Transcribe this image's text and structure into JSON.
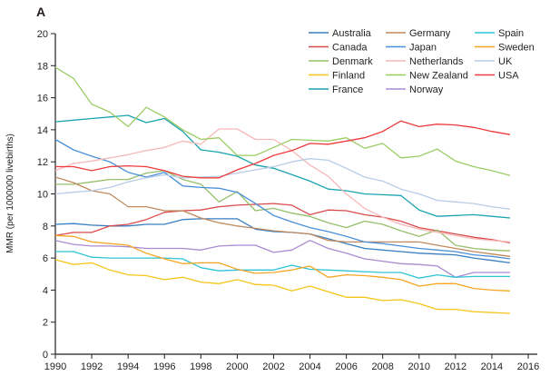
{
  "chart_data": {
    "type": "line",
    "panel_label": "A",
    "title": "",
    "xlabel": "",
    "ylabel": "MMR (per 1000000 livebirths)",
    "xlim": [
      1990,
      2016
    ],
    "ylim": [
      0,
      20
    ],
    "xticks": [
      1990,
      1992,
      1994,
      1996,
      1998,
      2000,
      2002,
      2004,
      2006,
      2008,
      2010,
      2012,
      2014,
      2016
    ],
    "yticks": [
      0,
      2,
      4,
      6,
      8,
      10,
      12,
      14,
      16,
      18,
      20
    ],
    "grid": false,
    "legend_position": "top-right",
    "x": [
      1990,
      1991,
      1992,
      1993,
      1994,
      1995,
      1996,
      1997,
      1998,
      1999,
      2000,
      2001,
      2002,
      2003,
      2004,
      2005,
      2006,
      2007,
      2008,
      2009,
      2010,
      2011,
      2012,
      2013,
      2014,
      2015
    ],
    "series": [
      {
        "name": "Australia",
        "color": "#3a7fc1",
        "values": [
          8.1,
          8.15,
          8.05,
          8.0,
          8.0,
          8.1,
          8.1,
          8.4,
          8.45,
          8.45,
          8.45,
          7.8,
          7.65,
          7.6,
          7.5,
          7.2,
          6.9,
          6.6,
          6.5,
          6.4,
          6.3,
          6.25,
          6.2,
          6.0,
          5.85,
          5.7
        ]
      },
      {
        "name": "Canada",
        "color": "#d94b4b",
        "values": [
          7.4,
          7.6,
          7.6,
          8.0,
          8.1,
          8.4,
          8.85,
          8.95,
          9.0,
          9.2,
          9.3,
          9.35,
          9.4,
          9.3,
          8.7,
          9.0,
          8.95,
          8.7,
          8.55,
          8.3,
          7.9,
          7.7,
          7.5,
          7.3,
          7.15,
          6.95
        ]
      },
      {
        "name": "Denmark",
        "color": "#95bf6a",
        "values": [
          10.6,
          10.6,
          10.75,
          10.9,
          10.9,
          11.3,
          11.45,
          10.9,
          10.6,
          9.5,
          10.15,
          8.95,
          9.1,
          8.8,
          8.6,
          8.2,
          7.9,
          8.3,
          8.1,
          7.7,
          7.35,
          7.75,
          6.8,
          6.6,
          6.5,
          6.45
        ]
      },
      {
        "name": "Finland",
        "color": "#f5c518",
        "values": [
          5.9,
          5.6,
          5.7,
          5.25,
          4.95,
          4.9,
          4.65,
          4.8,
          4.5,
          4.4,
          4.65,
          4.35,
          4.3,
          3.95,
          4.25,
          3.9,
          3.55,
          3.55,
          3.35,
          3.4,
          3.15,
          2.8,
          2.8,
          2.65,
          2.6,
          2.55
        ]
      },
      {
        "name": "France",
        "color": "#1aa3b0",
        "values": [
          14.5,
          14.6,
          14.7,
          14.8,
          14.9,
          14.45,
          14.7,
          13.9,
          12.75,
          12.6,
          12.35,
          11.8,
          11.6,
          11.2,
          10.8,
          10.3,
          10.2,
          10.0,
          9.95,
          9.9,
          9.0,
          8.6,
          8.65,
          8.7,
          8.6,
          8.5
        ]
      },
      {
        "name": "Germany",
        "color": "#c18a5e",
        "values": [
          11.05,
          10.7,
          10.2,
          10.0,
          9.2,
          9.2,
          8.95,
          8.95,
          8.5,
          8.2,
          8.0,
          7.85,
          7.7,
          7.6,
          7.5,
          7.1,
          7.0,
          7.0,
          7.0,
          7.0,
          7.0,
          6.8,
          6.6,
          6.4,
          6.25,
          6.1
        ]
      },
      {
        "name": "Japan",
        "color": "#4a90d9",
        "values": [
          13.4,
          12.75,
          12.35,
          12.0,
          11.35,
          11.05,
          11.35,
          10.5,
          10.4,
          10.35,
          10.1,
          9.4,
          8.65,
          8.25,
          7.9,
          7.65,
          7.35,
          7.0,
          6.9,
          6.75,
          6.6,
          6.5,
          6.4,
          6.2,
          6.1,
          5.95
        ]
      },
      {
        "name": "Netherlands",
        "color": "#f7b8b8",
        "values": [
          11.45,
          11.9,
          12.05,
          12.25,
          12.45,
          12.7,
          12.9,
          13.3,
          13.1,
          14.05,
          14.05,
          13.4,
          13.4,
          12.7,
          11.8,
          11.1,
          10.0,
          9.1,
          8.55,
          8.1,
          7.8,
          7.6,
          7.4,
          7.2,
          7.1,
          7.0
        ]
      },
      {
        "name": "New Zealand",
        "color": "#9ccc65",
        "values": [
          17.9,
          17.2,
          15.6,
          15.1,
          14.2,
          15.4,
          14.8,
          14.0,
          13.4,
          13.5,
          12.4,
          12.4,
          12.9,
          13.4,
          13.35,
          13.3,
          13.5,
          12.85,
          13.15,
          12.25,
          12.35,
          12.8,
          12.05,
          11.7,
          11.45,
          11.15
        ]
      },
      {
        "name": "Norway",
        "color": "#a98bd1",
        "values": [
          7.1,
          6.85,
          6.75,
          6.75,
          6.7,
          6.6,
          6.6,
          6.6,
          6.5,
          6.75,
          6.8,
          6.8,
          6.35,
          6.5,
          7.1,
          6.6,
          6.3,
          5.95,
          5.8,
          5.65,
          5.6,
          5.5,
          4.8,
          5.1,
          5.1,
          5.1
        ]
      },
      {
        "name": "Spain",
        "color": "#2ec4d6",
        "values": [
          6.4,
          6.4,
          6.05,
          6.0,
          6.0,
          6.0,
          6.0,
          5.95,
          5.4,
          5.2,
          5.25,
          5.25,
          5.25,
          5.55,
          5.3,
          5.25,
          5.2,
          5.15,
          5.1,
          5.1,
          4.75,
          4.95,
          4.8,
          4.85,
          4.85,
          4.85
        ]
      },
      {
        "name": "Sweden",
        "color": "#f5a623",
        "values": [
          7.4,
          7.35,
          7.0,
          6.9,
          6.8,
          6.3,
          5.95,
          5.65,
          5.7,
          5.7,
          5.3,
          5.05,
          5.1,
          5.25,
          5.5,
          4.8,
          4.95,
          4.9,
          4.8,
          4.65,
          4.25,
          4.4,
          4.4,
          4.1,
          4.0,
          3.95
        ]
      },
      {
        "name": "UK",
        "color": "#b7cce6",
        "values": [
          10.0,
          10.1,
          10.2,
          10.4,
          10.75,
          11.0,
          11.2,
          11.0,
          11.05,
          11.1,
          11.3,
          11.5,
          11.7,
          12.0,
          12.2,
          12.1,
          11.6,
          11.05,
          10.8,
          10.3,
          10.0,
          9.6,
          9.5,
          9.4,
          9.2,
          9.05
        ]
      },
      {
        "name": "USA",
        "color": "#ee3b3b",
        "values": [
          11.7,
          11.7,
          11.45,
          11.7,
          11.75,
          11.7,
          11.45,
          11.1,
          11.0,
          11.0,
          11.5,
          11.9,
          12.4,
          12.7,
          13.15,
          13.1,
          13.3,
          13.5,
          13.9,
          14.55,
          14.2,
          14.35,
          14.3,
          14.15,
          13.9,
          13.7
        ]
      }
    ]
  }
}
